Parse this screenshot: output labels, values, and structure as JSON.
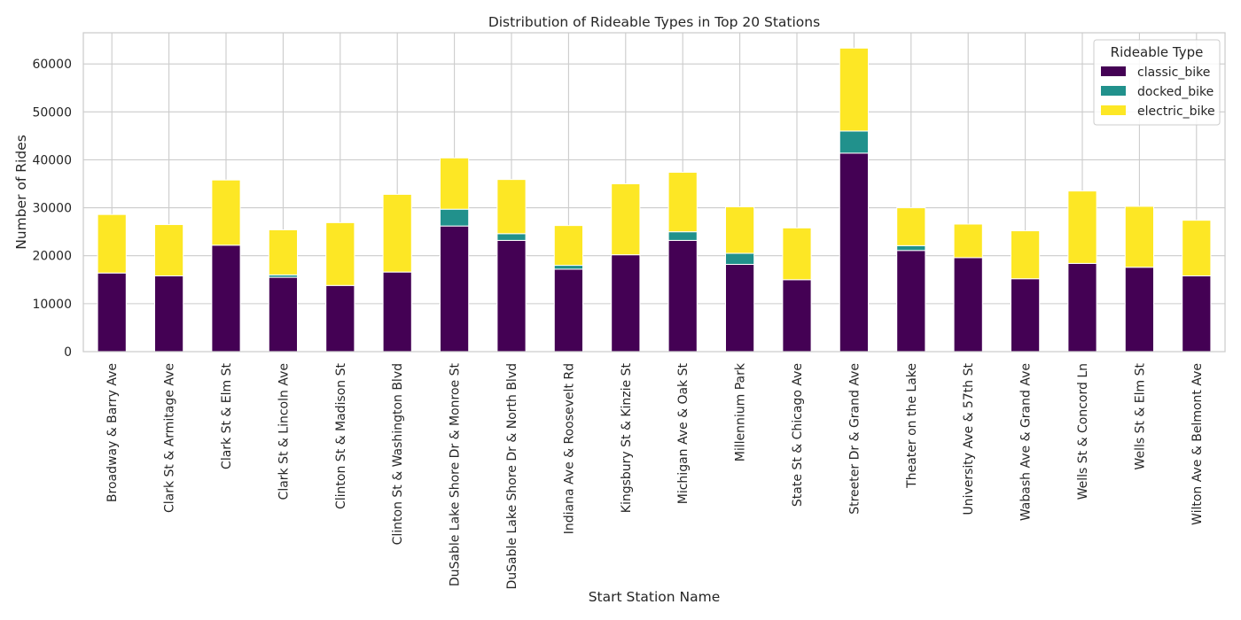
{
  "chart_data": {
    "type": "bar",
    "stacked": true,
    "title": "Distribution of Rideable Types in Top 20 Stations",
    "xlabel": "Start Station Name",
    "ylabel": "Number of Rides",
    "ylim": [
      0,
      66500
    ],
    "yticks": [
      0,
      10000,
      20000,
      30000,
      40000,
      50000,
      60000
    ],
    "grid": true,
    "legend": {
      "title": "Rideable Type",
      "placement": "top-right"
    },
    "categories": [
      "Broadway & Barry Ave",
      "Clark St & Armitage Ave",
      "Clark St & Elm St",
      "Clark St & Lincoln Ave",
      "Clinton St & Madison St",
      "Clinton St & Washington Blvd",
      "DuSable Lake Shore Dr & Monroe St",
      "DuSable Lake Shore Dr & North Blvd",
      "Indiana Ave & Roosevelt Rd",
      "Kingsbury St & Kinzie St",
      "Michigan Ave & Oak St",
      "Millennium Park",
      "State St & Chicago Ave",
      "Streeter Dr & Grand Ave",
      "Theater on the Lake",
      "University Ave & 57th St",
      "Wabash Ave & Grand Ave",
      "Wells St & Concord Ln",
      "Wells St & Elm St",
      "Wilton Ave & Belmont Ave"
    ],
    "series": [
      {
        "name": "classic_bike",
        "color": "#440154",
        "values": [
          16400,
          15800,
          22200,
          15500,
          13800,
          16600,
          26200,
          23200,
          17200,
          20200,
          23200,
          18200,
          15000,
          41400,
          21100,
          19600,
          15200,
          18400,
          17600,
          15800
        ]
      },
      {
        "name": "docked_bike",
        "color": "#21918c",
        "values": [
          0,
          0,
          0,
          500,
          0,
          0,
          3500,
          1400,
          800,
          0,
          1800,
          2300,
          0,
          4600,
          1000,
          0,
          0,
          0,
          0,
          0
        ]
      },
      {
        "name": "electric_bike",
        "color": "#fde725",
        "values": [
          12200,
          10700,
          13600,
          9400,
          13100,
          16200,
          10700,
          11300,
          8300,
          14800,
          12400,
          9700,
          10800,
          17300,
          7900,
          7000,
          10000,
          15100,
          12700,
          11600
        ]
      }
    ]
  }
}
